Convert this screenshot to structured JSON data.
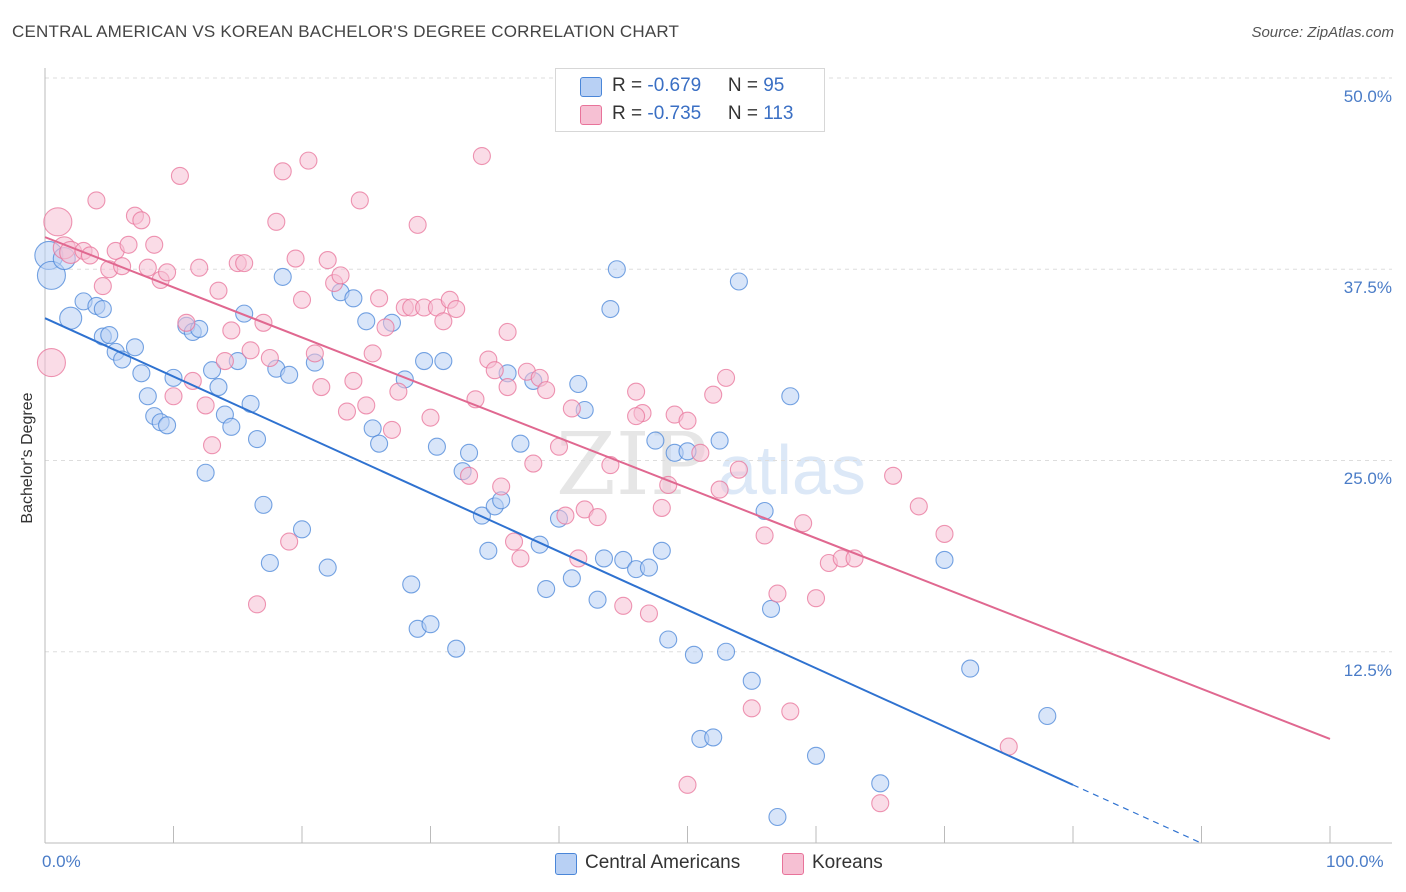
{
  "title": "CENTRAL AMERICAN VS KOREAN BACHELOR'S DEGREE CORRELATION CHART",
  "source": "Source: ZipAtlas.com",
  "watermark": "ZIPatlas",
  "colors": {
    "blue": "#4a86d8",
    "blue_fill": "#b8d0f4",
    "pink": "#e8739a",
    "pink_fill": "#f6c0d3",
    "blue_line": "#2f72d0",
    "pink_line": "#e06890",
    "axis_text": "#4a7cc7"
  },
  "legend": {
    "rows": [
      {
        "r_label": "R = ",
        "r_value": "-0.679",
        "n_label": "N = ",
        "n_value": "95"
      },
      {
        "r_label": "R = ",
        "r_value": "-0.735",
        "n_label": "N = ",
        "n_value": "113"
      }
    ]
  },
  "bottom_legend": [
    "Central Americans",
    "Koreans"
  ],
  "chart_data": {
    "type": "scatter",
    "title": "CENTRAL AMERICAN VS KOREAN BACHELOR'S DEGREE CORRELATION CHART",
    "xlabel": "",
    "ylabel": "Bachelor's Degree",
    "x_tick_labels": [
      "0.0%",
      "100.0%"
    ],
    "y_tick_labels": [
      "12.5%",
      "25.0%",
      "37.5%",
      "50.0%"
    ],
    "xlim": [
      0,
      100
    ],
    "ylim": [
      0,
      50
    ],
    "grid": true,
    "legend_position": "top-center",
    "series": [
      {
        "name": "Central Americans",
        "R": -0.679,
        "N": 95,
        "trend": {
          "x0": 0,
          "y0": 34.3,
          "x1": 80,
          "y1": 3.8,
          "dashed_to": 90
        },
        "points": [
          [
            0.3,
            38.4
          ],
          [
            0.5,
            37.1
          ],
          [
            1.5,
            38.2
          ],
          [
            2.0,
            34.3
          ],
          [
            3.0,
            35.4
          ],
          [
            4.0,
            35.1
          ],
          [
            4.5,
            33.1
          ],
          [
            5.0,
            33.2
          ],
          [
            5.5,
            32.1
          ],
          [
            6.0,
            31.6
          ],
          [
            7.0,
            32.4
          ],
          [
            7.5,
            30.7
          ],
          [
            8.0,
            29.2
          ],
          [
            8.5,
            27.9
          ],
          [
            9.0,
            27.5
          ],
          [
            9.5,
            27.3
          ],
          [
            10.0,
            30.4
          ],
          [
            11.0,
            33.8
          ],
          [
            11.5,
            33.4
          ],
          [
            12.0,
            33.6
          ],
          [
            12.5,
            24.2
          ],
          [
            13.0,
            30.9
          ],
          [
            13.5,
            29.8
          ],
          [
            14.0,
            28.0
          ],
          [
            14.5,
            27.2
          ],
          [
            15.0,
            31.5
          ],
          [
            15.5,
            34.6
          ],
          [
            16.0,
            28.7
          ],
          [
            16.5,
            26.4
          ],
          [
            17.0,
            22.1
          ],
          [
            17.5,
            18.3
          ],
          [
            18.0,
            31.0
          ],
          [
            18.5,
            37.0
          ],
          [
            19.0,
            30.6
          ],
          [
            20.0,
            20.5
          ],
          [
            21.0,
            31.4
          ],
          [
            22.0,
            18.0
          ],
          [
            23.0,
            36.0
          ],
          [
            24.0,
            35.6
          ],
          [
            25.0,
            34.1
          ],
          [
            25.5,
            27.1
          ],
          [
            26.0,
            26.1
          ],
          [
            27.0,
            34.0
          ],
          [
            28.0,
            30.3
          ],
          [
            28.5,
            16.9
          ],
          [
            29.0,
            14.0
          ],
          [
            29.5,
            31.5
          ],
          [
            30.0,
            14.3
          ],
          [
            30.5,
            25.9
          ],
          [
            31.0,
            31.5
          ],
          [
            32.0,
            12.7
          ],
          [
            32.5,
            24.3
          ],
          [
            33.0,
            25.5
          ],
          [
            34.0,
            21.4
          ],
          [
            34.5,
            19.1
          ],
          [
            35.0,
            22.0
          ],
          [
            35.5,
            22.4
          ],
          [
            36.0,
            30.7
          ],
          [
            37.0,
            26.1
          ],
          [
            38.0,
            30.2
          ],
          [
            38.5,
            19.5
          ],
          [
            39.0,
            16.6
          ],
          [
            40.0,
            21.2
          ],
          [
            41.0,
            17.3
          ],
          [
            41.5,
            30.0
          ],
          [
            42.0,
            28.3
          ],
          [
            43.0,
            15.9
          ],
          [
            43.5,
            18.6
          ],
          [
            44.0,
            34.9
          ],
          [
            44.5,
            37.5
          ],
          [
            45.0,
            18.5
          ],
          [
            46.0,
            17.9
          ],
          [
            47.0,
            18.0
          ],
          [
            47.5,
            26.3
          ],
          [
            48.0,
            19.1
          ],
          [
            48.5,
            13.3
          ],
          [
            49.0,
            25.5
          ],
          [
            50.0,
            25.6
          ],
          [
            50.5,
            12.3
          ],
          [
            51.0,
            6.8
          ],
          [
            52.0,
            6.9
          ],
          [
            52.5,
            26.3
          ],
          [
            53.0,
            12.5
          ],
          [
            54.0,
            36.7
          ],
          [
            55.0,
            10.6
          ],
          [
            56.0,
            21.7
          ],
          [
            56.5,
            15.3
          ],
          [
            57.0,
            1.7
          ],
          [
            58.0,
            29.2
          ],
          [
            60.0,
            5.7
          ],
          [
            65.0,
            3.9
          ],
          [
            70.0,
            18.5
          ],
          [
            72.0,
            11.4
          ],
          [
            78.0,
            8.3
          ],
          [
            4.5,
            34.9
          ]
        ]
      },
      {
        "name": "Koreans",
        "R": -0.735,
        "N": 113,
        "trend": {
          "x0": 0,
          "y0": 39.6,
          "x1": 100,
          "y1": 6.8
        },
        "points": [
          [
            0.5,
            31.4
          ],
          [
            1.0,
            40.6
          ],
          [
            1.5,
            38.9
          ],
          [
            2.0,
            38.6
          ],
          [
            3.0,
            38.7
          ],
          [
            3.5,
            38.4
          ],
          [
            4.0,
            42.0
          ],
          [
            4.5,
            36.4
          ],
          [
            5.0,
            37.5
          ],
          [
            5.5,
            38.7
          ],
          [
            6.0,
            37.7
          ],
          [
            6.5,
            39.1
          ],
          [
            7.0,
            41.0
          ],
          [
            7.5,
            40.7
          ],
          [
            8.0,
            37.6
          ],
          [
            8.5,
            39.1
          ],
          [
            9.0,
            36.8
          ],
          [
            9.5,
            37.3
          ],
          [
            10.0,
            29.2
          ],
          [
            10.5,
            43.6
          ],
          [
            11.0,
            34.0
          ],
          [
            11.5,
            30.2
          ],
          [
            12.0,
            37.6
          ],
          [
            12.5,
            28.6
          ],
          [
            13.0,
            26.0
          ],
          [
            13.5,
            36.1
          ],
          [
            14.0,
            31.5
          ],
          [
            14.5,
            33.5
          ],
          [
            15.0,
            37.9
          ],
          [
            15.5,
            37.9
          ],
          [
            16.0,
            32.2
          ],
          [
            16.5,
            15.6
          ],
          [
            17.0,
            34.0
          ],
          [
            17.5,
            31.7
          ],
          [
            18.0,
            40.6
          ],
          [
            18.5,
            43.9
          ],
          [
            19.0,
            19.7
          ],
          [
            19.5,
            38.2
          ],
          [
            20.0,
            35.5
          ],
          [
            20.5,
            44.6
          ],
          [
            21.0,
            32.0
          ],
          [
            21.5,
            29.8
          ],
          [
            22.0,
            38.1
          ],
          [
            22.5,
            36.6
          ],
          [
            23.0,
            37.1
          ],
          [
            23.5,
            28.2
          ],
          [
            24.0,
            30.2
          ],
          [
            24.5,
            42.0
          ],
          [
            25.0,
            28.6
          ],
          [
            25.5,
            32.0
          ],
          [
            26.0,
            35.6
          ],
          [
            26.5,
            33.7
          ],
          [
            27.0,
            27.0
          ],
          [
            27.5,
            29.5
          ],
          [
            28.0,
            35.0
          ],
          [
            28.5,
            35.0
          ],
          [
            29.0,
            40.4
          ],
          [
            29.5,
            35.0
          ],
          [
            30.0,
            27.8
          ],
          [
            30.5,
            35.0
          ],
          [
            31.0,
            34.1
          ],
          [
            31.5,
            35.5
          ],
          [
            32.0,
            34.9
          ],
          [
            33.0,
            24.0
          ],
          [
            34.0,
            44.9
          ],
          [
            34.5,
            31.6
          ],
          [
            35.0,
            30.9
          ],
          [
            35.5,
            23.3
          ],
          [
            36.0,
            29.8
          ],
          [
            36.5,
            19.7
          ],
          [
            37.0,
            18.6
          ],
          [
            37.5,
            30.8
          ],
          [
            38.0,
            24.8
          ],
          [
            38.5,
            30.4
          ],
          [
            39.0,
            29.6
          ],
          [
            40.0,
            25.9
          ],
          [
            40.5,
            21.4
          ],
          [
            41.0,
            28.4
          ],
          [
            41.5,
            18.6
          ],
          [
            42.0,
            21.8
          ],
          [
            43.0,
            21.3
          ],
          [
            44.0,
            24.7
          ],
          [
            45.0,
            15.5
          ],
          [
            46.0,
            29.5
          ],
          [
            46.5,
            28.1
          ],
          [
            47.0,
            15.0
          ],
          [
            48.0,
            21.9
          ],
          [
            48.5,
            23.4
          ],
          [
            49.0,
            28.0
          ],
          [
            50.0,
            27.6
          ],
          [
            51.0,
            25.5
          ],
          [
            52.0,
            29.3
          ],
          [
            52.5,
            23.1
          ],
          [
            53.0,
            30.4
          ],
          [
            54.0,
            24.4
          ],
          [
            55.0,
            8.8
          ],
          [
            56.0,
            20.1
          ],
          [
            57.0,
            16.3
          ],
          [
            58.0,
            8.6
          ],
          [
            59.0,
            20.9
          ],
          [
            60.0,
            16.0
          ],
          [
            61.0,
            18.3
          ],
          [
            62.0,
            18.6
          ],
          [
            63.0,
            18.6
          ],
          [
            65.0,
            2.6
          ],
          [
            66.0,
            24.0
          ],
          [
            68.0,
            22.0
          ],
          [
            70.0,
            20.2
          ],
          [
            75.0,
            6.3
          ],
          [
            50.0,
            3.8
          ],
          [
            46.0,
            27.9
          ],
          [
            36.0,
            33.4
          ],
          [
            33.5,
            29.0
          ]
        ]
      }
    ]
  }
}
